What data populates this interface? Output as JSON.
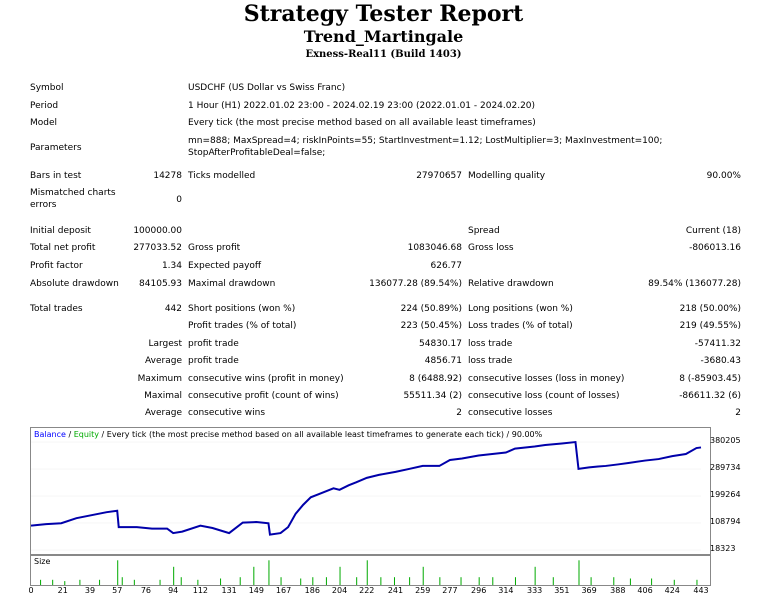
{
  "header": {
    "title": "Strategy Tester Report",
    "expert": "Trend_Martingale",
    "server": "Exness-Real11 (Build 1403)"
  },
  "info": {
    "symbol_label": "Symbol",
    "symbol": "USDCHF (US Dollar vs Swiss Franc)",
    "period_label": "Period",
    "period": "1 Hour (H1) 2022.01.02 23:00 - 2024.02.19 23:00 (2022.01.01 - 2024.02.20)",
    "model_label": "Model",
    "model": "Every tick (the most precise method based on all available least timeframes)",
    "parameters_label": "Parameters",
    "parameters_line1": "mn=888; MaxSpread=4; riskInPoints=55; StartInvestment=1.12; LostMultiplier=3; MaxInvestment=100;",
    "parameters_line2": "StopAfterProfitableDeal=false;"
  },
  "stats": {
    "bars_label": "Bars in test",
    "bars": "14278",
    "ticks_label": "Ticks modelled",
    "ticks": "27970657",
    "quality_label": "Modelling quality",
    "quality": "90.00%",
    "mismatch_label1": "Mismatched charts",
    "mismatch_label2": "errors",
    "mismatch": "0",
    "deposit_label": "Initial deposit",
    "deposit": "100000.00",
    "spread_label": "Spread",
    "spread": "Current (18)",
    "net_label": "Total net profit",
    "net": "277033.52",
    "gross_profit_label": "Gross profit",
    "gross_profit": "1083046.68",
    "gross_loss_label": "Gross loss",
    "gross_loss": "-806013.16",
    "pf_label": "Profit factor",
    "pf": "1.34",
    "payoff_label": "Expected payoff",
    "payoff": "626.77",
    "abs_dd_label": "Absolute drawdown",
    "abs_dd": "84105.93",
    "max_dd_label": "Maximal drawdown",
    "max_dd": "136077.28 (89.54%)",
    "rel_dd_label": "Relative drawdown",
    "rel_dd": "89.54% (136077.28)",
    "trades_label": "Total trades",
    "trades": "442",
    "short_label": "Short positions (won %)",
    "short": "224 (50.89%)",
    "long_label": "Long positions (won %)",
    "long": "218 (50.00%)",
    "pt_label": "Profit trades (% of total)",
    "pt": "223 (50.45%)",
    "lt_label": "Loss trades (% of total)",
    "lt": "219 (49.55%)",
    "largest": "Largest",
    "largest_pt_label": "profit trade",
    "largest_pt": "54830.17",
    "largest_lt_label": "loss trade",
    "largest_lt": "-57411.32",
    "average": "Average",
    "avg_pt_label": "profit trade",
    "avg_pt": "4856.71",
    "avg_lt_label": "loss trade",
    "avg_lt": "-3680.43",
    "maximum": "Maximum",
    "max_cw_label": "consecutive wins (profit in money)",
    "max_cw": "8 (6488.92)",
    "max_cl_label": "consecutive losses (loss in money)",
    "max_cl": "8 (-85903.45)",
    "maximal": "Maximal",
    "maxl_cp_label": "consecutive profit (count of wins)",
    "maxl_cp": "55511.34 (2)",
    "maxl_cl_label": "consecutive loss (count of losses)",
    "maxl_cl": "-86611.32 (6)",
    "average2": "Average",
    "avg_cw_label": "consecutive wins",
    "avg_cw": "2",
    "avg_cl_label": "consecutive losses",
    "avg_cl": "2"
  },
  "chart_legend": {
    "balance": "Balance",
    "sep": " / ",
    "equity": "Equity",
    "rest": " / Every tick (the most precise method based on all available least timeframes to generate each tick) / 90.00%",
    "balance_color": "#0000ff",
    "equity_color": "#00aa00"
  },
  "size_label": "Size",
  "chart_data": {
    "type": "line",
    "series": [
      {
        "name": "Balance",
        "x": [
          0,
          10,
          20,
          30,
          40,
          50,
          57,
          58,
          70,
          80,
          90,
          94,
          100,
          112,
          120,
          131,
          140,
          149,
          157,
          158,
          165,
          170,
          175,
          180,
          185,
          190,
          195,
          200,
          204,
          210,
          215,
          222,
          230,
          241,
          250,
          259,
          270,
          277,
          285,
          296,
          305,
          314,
          320,
          333,
          340,
          351,
          360,
          362,
          369,
          375,
          380,
          388,
          395,
          406,
          415,
          424,
          433,
          440,
          443
        ],
        "y": [
          100000,
          105000,
          108000,
          125000,
          135000,
          145000,
          150000,
          95000,
          95000,
          90000,
          90000,
          75000,
          80000,
          100000,
          92000,
          75000,
          110000,
          112000,
          108000,
          70000,
          75000,
          95000,
          140000,
          170000,
          195000,
          205000,
          215000,
          225000,
          220000,
          235000,
          245000,
          260000,
          270000,
          280000,
          290000,
          300000,
          300000,
          320000,
          325000,
          335000,
          340000,
          345000,
          358000,
          365000,
          370000,
          375000,
          380000,
          290000,
          295000,
          298000,
          300000,
          305000,
          310000,
          318000,
          323000,
          333000,
          340000,
          360000,
          362000
        ]
      }
    ],
    "x_ticks": [
      "0",
      "21",
      "39",
      "57",
      "76",
      "94",
      "112",
      "131",
      "149",
      "167",
      "186",
      "204",
      "222",
      "241",
      "259",
      "277",
      "296",
      "314",
      "333",
      "351",
      "369",
      "388",
      "406",
      "424",
      "443"
    ],
    "y_ticks": [
      "380205",
      "289734",
      "199264",
      "108794",
      "18323"
    ],
    "ylim": [
      18323,
      380205
    ],
    "xlim": [
      0,
      443
    ],
    "size_bars": [
      {
        "x": 6,
        "h": 0.2
      },
      {
        "x": 14,
        "h": 0.2
      },
      {
        "x": 22,
        "h": 0.15
      },
      {
        "x": 32,
        "h": 0.2
      },
      {
        "x": 45,
        "h": 0.2
      },
      {
        "x": 57,
        "h": 0.95
      },
      {
        "x": 60,
        "h": 0.3
      },
      {
        "x": 68,
        "h": 0.2
      },
      {
        "x": 85,
        "h": 0.2
      },
      {
        "x": 94,
        "h": 0.7
      },
      {
        "x": 99,
        "h": 0.3
      },
      {
        "x": 110,
        "h": 0.2
      },
      {
        "x": 125,
        "h": 0.25
      },
      {
        "x": 138,
        "h": 0.3
      },
      {
        "x": 147,
        "h": 0.7
      },
      {
        "x": 157,
        "h": 0.95
      },
      {
        "x": 165,
        "h": 0.3
      },
      {
        "x": 178,
        "h": 0.25
      },
      {
        "x": 186,
        "h": 0.3
      },
      {
        "x": 195,
        "h": 0.3
      },
      {
        "x": 204,
        "h": 0.7
      },
      {
        "x": 215,
        "h": 0.3
      },
      {
        "x": 222,
        "h": 0.95
      },
      {
        "x": 231,
        "h": 0.3
      },
      {
        "x": 240,
        "h": 0.3
      },
      {
        "x": 250,
        "h": 0.3
      },
      {
        "x": 259,
        "h": 0.7
      },
      {
        "x": 270,
        "h": 0.3
      },
      {
        "x": 284,
        "h": 0.3
      },
      {
        "x": 296,
        "h": 0.3
      },
      {
        "x": 305,
        "h": 0.3
      },
      {
        "x": 320,
        "h": 0.3
      },
      {
        "x": 333,
        "h": 0.7
      },
      {
        "x": 345,
        "h": 0.3
      },
      {
        "x": 362,
        "h": 0.95
      },
      {
        "x": 370,
        "h": 0.3
      },
      {
        "x": 385,
        "h": 0.3
      },
      {
        "x": 396,
        "h": 0.25
      },
      {
        "x": 410,
        "h": 0.25
      },
      {
        "x": 425,
        "h": 0.2
      },
      {
        "x": 440,
        "h": 0.2
      }
    ]
  }
}
